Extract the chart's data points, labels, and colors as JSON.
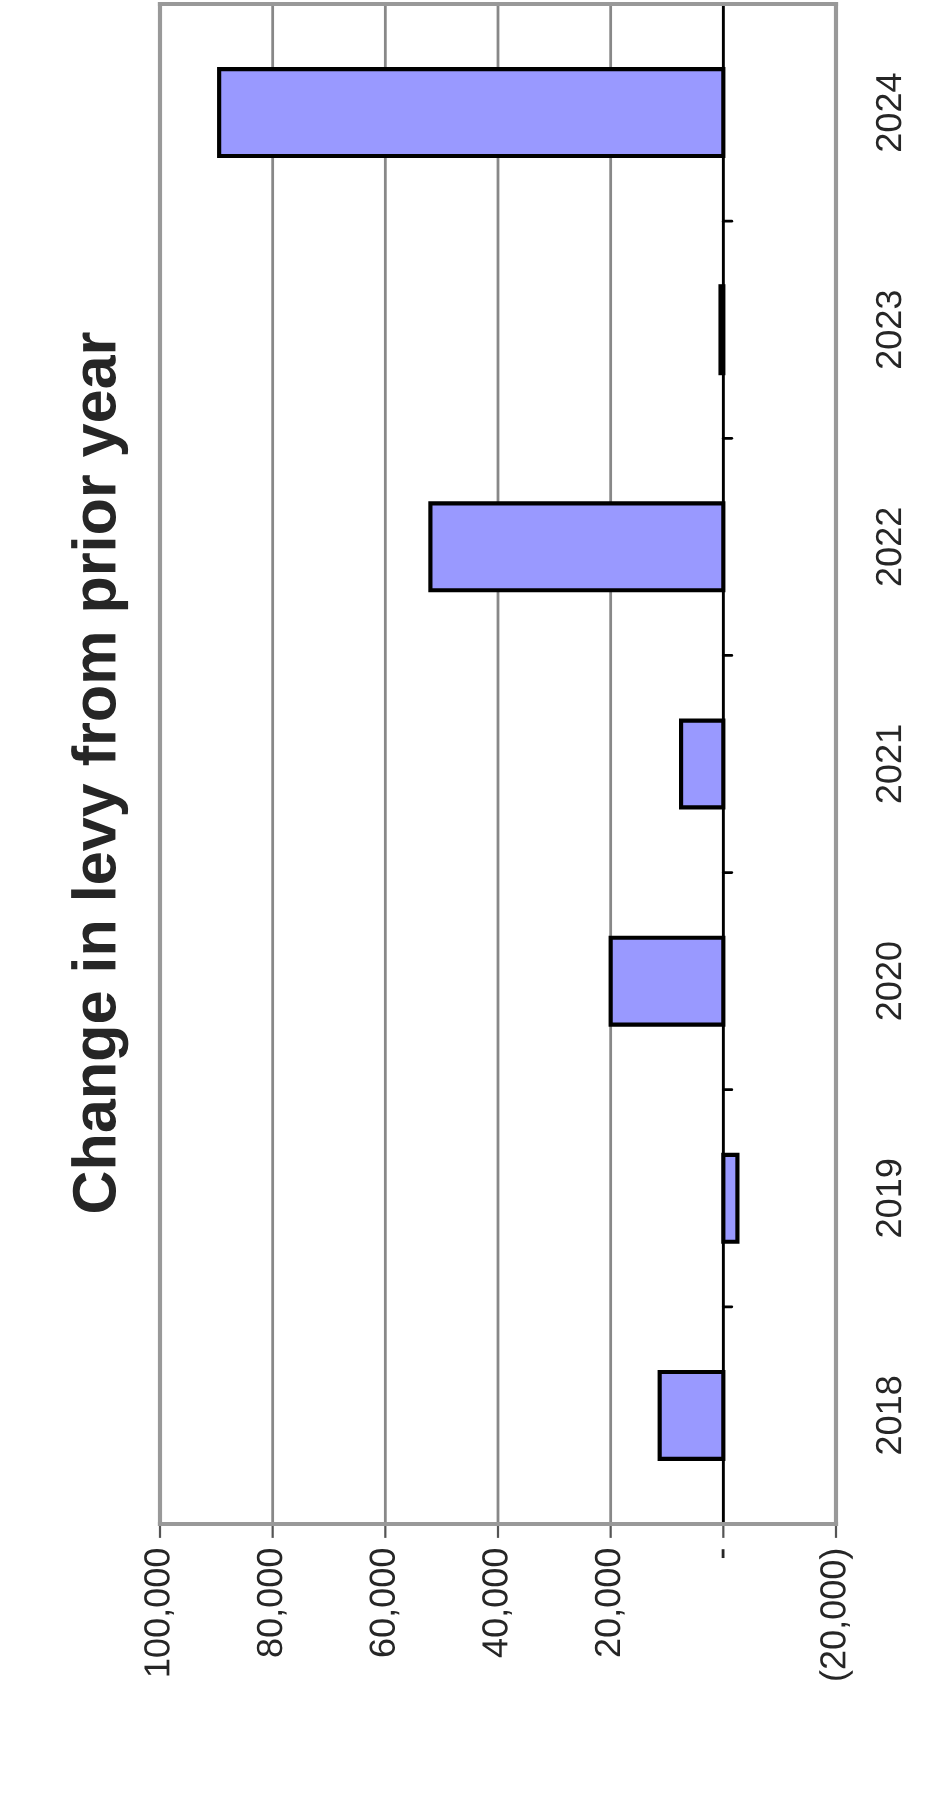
{
  "chart_data": {
    "type": "bar",
    "orientation": "horizontal",
    "title": "Change in levy from prior year",
    "categories": [
      "2024",
      "2023",
      "2022",
      "2021",
      "2020",
      "2019",
      "2018"
    ],
    "values": [
      89500,
      500,
      52000,
      7500,
      20000,
      -2500,
      11300
    ],
    "color": "#9999ff",
    "xlim": [
      100000,
      -20000
    ],
    "xticks": [
      {
        "value": 100000,
        "label": "100,000"
      },
      {
        "value": 80000,
        "label": "80,000"
      },
      {
        "value": 60000,
        "label": "60,000"
      },
      {
        "value": 40000,
        "label": "40,000"
      },
      {
        "value": 20000,
        "label": "20,000"
      },
      {
        "value": 0,
        "label": "-"
      },
      {
        "value": -20000,
        "label": "(20,000)"
      }
    ],
    "grid": "x"
  }
}
